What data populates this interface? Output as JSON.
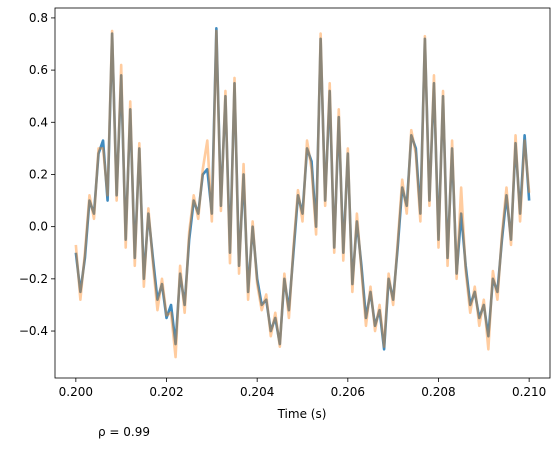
{
  "chart_data": {
    "type": "line",
    "xlabel": "Time (s)",
    "annotation": "ρ =  0.99",
    "x": [
      0.2,
      0.2001,
      0.2002,
      0.2003,
      0.2004,
      0.2005,
      0.2006,
      0.2007,
      0.2008,
      0.2009,
      0.201,
      0.2011,
      0.2012,
      0.2013,
      0.2014,
      0.2015,
      0.2016,
      0.2017,
      0.2018,
      0.2019,
      0.202,
      0.2021,
      0.2022,
      0.2023,
      0.2024,
      0.2025,
      0.2026,
      0.2027,
      0.2028,
      0.2029,
      0.203,
      0.2031,
      0.2032,
      0.2033,
      0.2034,
      0.2035,
      0.2036,
      0.2037,
      0.2038,
      0.2039,
      0.204,
      0.2041,
      0.2042,
      0.2043,
      0.2044,
      0.2045,
      0.2046,
      0.2047,
      0.2048,
      0.2049,
      0.205,
      0.2051,
      0.2052,
      0.2053,
      0.2054,
      0.2055,
      0.2056,
      0.2057,
      0.2058,
      0.2059,
      0.206,
      0.2061,
      0.2062,
      0.2063,
      0.2064,
      0.2065,
      0.2066,
      0.2067,
      0.2068,
      0.2069,
      0.207,
      0.2071,
      0.2072,
      0.2073,
      0.2074,
      0.2075,
      0.2076,
      0.2077,
      0.2078,
      0.2079,
      0.208,
      0.2081,
      0.2082,
      0.2083,
      0.2084,
      0.2085,
      0.2086,
      0.2087,
      0.2088,
      0.2089,
      0.209,
      0.2091,
      0.2092,
      0.2093,
      0.2094,
      0.2095,
      0.2096,
      0.2097,
      0.2098,
      0.2099,
      0.21
    ],
    "series": [
      {
        "color": "#1f77b4",
        "opacity": 0.85,
        "values": [
          -0.1,
          -0.25,
          -0.12,
          0.1,
          0.05,
          0.28,
          0.33,
          0.1,
          0.74,
          0.12,
          0.58,
          -0.05,
          0.45,
          -0.12,
          0.3,
          -0.2,
          0.05,
          -0.12,
          -0.28,
          -0.22,
          -0.35,
          -0.3,
          -0.45,
          -0.18,
          -0.3,
          -0.05,
          0.1,
          0.05,
          0.2,
          0.22,
          0.05,
          0.76,
          0.08,
          0.5,
          -0.1,
          0.55,
          -0.15,
          0.2,
          -0.25,
          0.0,
          -0.2,
          -0.3,
          -0.28,
          -0.4,
          -0.35,
          -0.45,
          -0.2,
          -0.32,
          -0.1,
          0.12,
          0.05,
          0.3,
          0.25,
          0.0,
          0.72,
          0.1,
          0.52,
          -0.08,
          0.42,
          -0.1,
          0.28,
          -0.22,
          0.02,
          -0.15,
          -0.35,
          -0.25,
          -0.38,
          -0.32,
          -0.47,
          -0.2,
          -0.28,
          -0.08,
          0.15,
          0.08,
          0.35,
          0.3,
          0.05,
          0.72,
          0.1,
          0.55,
          -0.05,
          0.5,
          -0.12,
          0.3,
          -0.18,
          0.05,
          -0.15,
          -0.3,
          -0.25,
          -0.35,
          -0.3,
          -0.42,
          -0.2,
          -0.25,
          -0.05,
          0.12,
          -0.05,
          0.32,
          0.05,
          0.35,
          0.1
        ]
      },
      {
        "color": "#ff7f0e",
        "opacity": 0.4,
        "values": [
          -0.07,
          -0.28,
          -0.1,
          0.12,
          0.03,
          0.3,
          0.3,
          0.12,
          0.75,
          0.1,
          0.62,
          -0.08,
          0.48,
          -0.15,
          0.32,
          -0.23,
          0.07,
          -0.14,
          -0.32,
          -0.2,
          -0.34,
          -0.33,
          -0.5,
          -0.15,
          -0.33,
          -0.02,
          0.12,
          0.03,
          0.22,
          0.33,
          0.02,
          0.75,
          0.06,
          0.52,
          -0.14,
          0.57,
          -0.18,
          0.24,
          -0.28,
          0.02,
          -0.22,
          -0.32,
          -0.26,
          -0.42,
          -0.33,
          -0.46,
          -0.18,
          -0.35,
          -0.08,
          0.14,
          0.02,
          0.33,
          0.22,
          -0.03,
          0.74,
          0.08,
          0.55,
          -0.1,
          0.45,
          -0.13,
          0.3,
          -0.25,
          0.05,
          -0.17,
          -0.38,
          -0.23,
          -0.4,
          -0.3,
          -0.46,
          -0.18,
          -0.3,
          -0.06,
          0.18,
          0.05,
          0.37,
          0.28,
          0.02,
          0.73,
          0.08,
          0.58,
          -0.08,
          0.52,
          -0.15,
          0.33,
          -0.2,
          0.15,
          -0.17,
          -0.33,
          -0.23,
          -0.38,
          -0.28,
          -0.47,
          -0.17,
          -0.28,
          -0.03,
          0.15,
          -0.07,
          0.35,
          0.02,
          0.33,
          0.13
        ]
      }
    ],
    "xlim": [
      0.19954,
      0.21046
    ],
    "ylim": [
      -0.58,
      0.838
    ],
    "xticks": [
      {
        "value": 0.2,
        "label": "0.200"
      },
      {
        "value": 0.202,
        "label": "0.202"
      },
      {
        "value": 0.204,
        "label": "0.204"
      },
      {
        "value": 0.206,
        "label": "0.206"
      },
      {
        "value": 0.208,
        "label": "0.208"
      },
      {
        "value": 0.21,
        "label": "0.210"
      }
    ],
    "yticks": [
      {
        "value": -0.4,
        "label": "−0.4"
      },
      {
        "value": -0.2,
        "label": "−0.2"
      },
      {
        "value": 0,
        "label": "0.0"
      },
      0.2,
      0.4,
      0.6,
      0.8
    ]
  }
}
